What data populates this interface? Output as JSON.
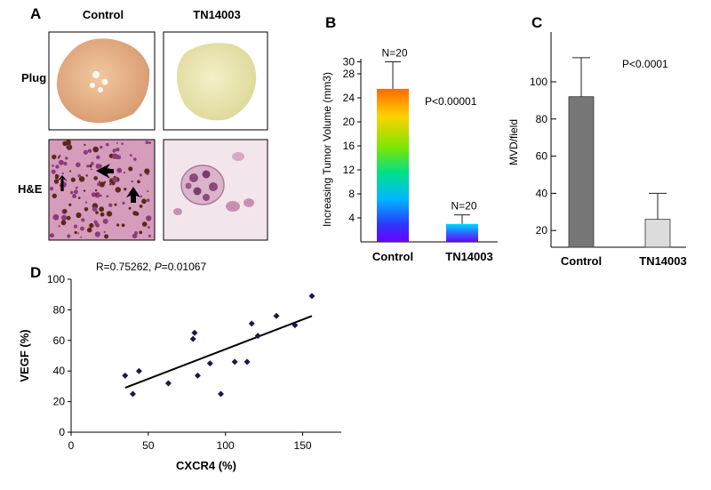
{
  "panel_labels": {
    "a": "A",
    "b": "B",
    "c": "C",
    "d": "D"
  },
  "panel_a": {
    "columns": [
      "Control",
      "TN14003"
    ],
    "rows": [
      "Plug",
      "H&E"
    ]
  },
  "chart_data": [
    {
      "id": "B",
      "type": "bar",
      "categories": [
        "Control",
        "TN14003"
      ],
      "values": [
        25.5,
        3.0
      ],
      "error_upper": [
        30.0,
        4.5
      ],
      "bar_labels": [
        "N=20",
        "N=20"
      ],
      "annotation": "P<0.00001",
      "ylabel": "Increasing Tumor Volume (mm3)",
      "yticks": [
        4,
        8,
        12,
        16,
        20,
        24,
        28,
        30
      ],
      "ylim": [
        0,
        32
      ],
      "fill": "rainbow gradient"
    },
    {
      "id": "C",
      "type": "bar",
      "categories": [
        "Control",
        "TN14003"
      ],
      "values": [
        92,
        26
      ],
      "error_upper": [
        113,
        40
      ],
      "annotation": "P<0.0001",
      "ylabel": "MVD/field",
      "yticks": [
        20,
        40,
        60,
        80,
        100
      ],
      "ylim": [
        11,
        114
      ],
      "colors": [
        "#777777",
        "#dcdcdc"
      ]
    },
    {
      "id": "D",
      "type": "scatter",
      "title": "R=0.75262, ",
      "title_p_label": "P",
      "title_p_value": "=0.01067",
      "xlabel": "CXCR4 (%)",
      "ylabel": "VEGF (%)",
      "xlim": [
        0,
        175
      ],
      "ylim": [
        0,
        100
      ],
      "xticks": [
        0,
        50,
        100,
        150
      ],
      "yticks": [
        0,
        20,
        40,
        60,
        80,
        100
      ],
      "x": [
        35,
        40,
        44,
        63,
        79,
        80,
        82,
        90,
        97,
        106,
        114,
        117,
        121,
        133,
        145,
        156
      ],
      "y": [
        37,
        25,
        40,
        32,
        61,
        65,
        37,
        45,
        25,
        46,
        46,
        71,
        63,
        76,
        70,
        89
      ],
      "trendline": {
        "x": [
          35,
          156
        ],
        "y": [
          29,
          76
        ]
      },
      "point_color": "#1a1a44"
    }
  ]
}
